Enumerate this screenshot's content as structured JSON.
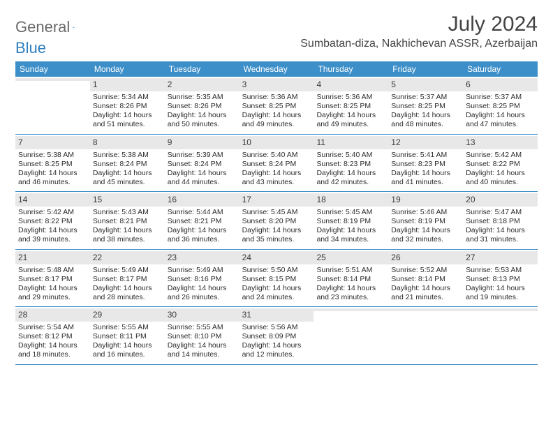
{
  "brand": {
    "word1": "General",
    "word2": "Blue"
  },
  "title": {
    "month": "July 2024",
    "location": "Sumbatan-diza, Nakhichevan ASSR, Azerbaijan"
  },
  "colors": {
    "header_bar": "#3d8fc9",
    "daynum_bg": "#e8e8e8",
    "text": "#2b2b2b"
  },
  "days_of_week": [
    "Sunday",
    "Monday",
    "Tuesday",
    "Wednesday",
    "Thursday",
    "Friday",
    "Saturday"
  ],
  "weeks": [
    [
      null,
      {
        "n": "1",
        "sr": "Sunrise: 5:34 AM",
        "ss": "Sunset: 8:26 PM",
        "d1": "Daylight: 14 hours",
        "d2": "and 51 minutes."
      },
      {
        "n": "2",
        "sr": "Sunrise: 5:35 AM",
        "ss": "Sunset: 8:26 PM",
        "d1": "Daylight: 14 hours",
        "d2": "and 50 minutes."
      },
      {
        "n": "3",
        "sr": "Sunrise: 5:36 AM",
        "ss": "Sunset: 8:25 PM",
        "d1": "Daylight: 14 hours",
        "d2": "and 49 minutes."
      },
      {
        "n": "4",
        "sr": "Sunrise: 5:36 AM",
        "ss": "Sunset: 8:25 PM",
        "d1": "Daylight: 14 hours",
        "d2": "and 49 minutes."
      },
      {
        "n": "5",
        "sr": "Sunrise: 5:37 AM",
        "ss": "Sunset: 8:25 PM",
        "d1": "Daylight: 14 hours",
        "d2": "and 48 minutes."
      },
      {
        "n": "6",
        "sr": "Sunrise: 5:37 AM",
        "ss": "Sunset: 8:25 PM",
        "d1": "Daylight: 14 hours",
        "d2": "and 47 minutes."
      }
    ],
    [
      {
        "n": "7",
        "sr": "Sunrise: 5:38 AM",
        "ss": "Sunset: 8:25 PM",
        "d1": "Daylight: 14 hours",
        "d2": "and 46 minutes."
      },
      {
        "n": "8",
        "sr": "Sunrise: 5:38 AM",
        "ss": "Sunset: 8:24 PM",
        "d1": "Daylight: 14 hours",
        "d2": "and 45 minutes."
      },
      {
        "n": "9",
        "sr": "Sunrise: 5:39 AM",
        "ss": "Sunset: 8:24 PM",
        "d1": "Daylight: 14 hours",
        "d2": "and 44 minutes."
      },
      {
        "n": "10",
        "sr": "Sunrise: 5:40 AM",
        "ss": "Sunset: 8:24 PM",
        "d1": "Daylight: 14 hours",
        "d2": "and 43 minutes."
      },
      {
        "n": "11",
        "sr": "Sunrise: 5:40 AM",
        "ss": "Sunset: 8:23 PM",
        "d1": "Daylight: 14 hours",
        "d2": "and 42 minutes."
      },
      {
        "n": "12",
        "sr": "Sunrise: 5:41 AM",
        "ss": "Sunset: 8:23 PM",
        "d1": "Daylight: 14 hours",
        "d2": "and 41 minutes."
      },
      {
        "n": "13",
        "sr": "Sunrise: 5:42 AM",
        "ss": "Sunset: 8:22 PM",
        "d1": "Daylight: 14 hours",
        "d2": "and 40 minutes."
      }
    ],
    [
      {
        "n": "14",
        "sr": "Sunrise: 5:42 AM",
        "ss": "Sunset: 8:22 PM",
        "d1": "Daylight: 14 hours",
        "d2": "and 39 minutes."
      },
      {
        "n": "15",
        "sr": "Sunrise: 5:43 AM",
        "ss": "Sunset: 8:21 PM",
        "d1": "Daylight: 14 hours",
        "d2": "and 38 minutes."
      },
      {
        "n": "16",
        "sr": "Sunrise: 5:44 AM",
        "ss": "Sunset: 8:21 PM",
        "d1": "Daylight: 14 hours",
        "d2": "and 36 minutes."
      },
      {
        "n": "17",
        "sr": "Sunrise: 5:45 AM",
        "ss": "Sunset: 8:20 PM",
        "d1": "Daylight: 14 hours",
        "d2": "and 35 minutes."
      },
      {
        "n": "18",
        "sr": "Sunrise: 5:45 AM",
        "ss": "Sunset: 8:19 PM",
        "d1": "Daylight: 14 hours",
        "d2": "and 34 minutes."
      },
      {
        "n": "19",
        "sr": "Sunrise: 5:46 AM",
        "ss": "Sunset: 8:19 PM",
        "d1": "Daylight: 14 hours",
        "d2": "and 32 minutes."
      },
      {
        "n": "20",
        "sr": "Sunrise: 5:47 AM",
        "ss": "Sunset: 8:18 PM",
        "d1": "Daylight: 14 hours",
        "d2": "and 31 minutes."
      }
    ],
    [
      {
        "n": "21",
        "sr": "Sunrise: 5:48 AM",
        "ss": "Sunset: 8:17 PM",
        "d1": "Daylight: 14 hours",
        "d2": "and 29 minutes."
      },
      {
        "n": "22",
        "sr": "Sunrise: 5:49 AM",
        "ss": "Sunset: 8:17 PM",
        "d1": "Daylight: 14 hours",
        "d2": "and 28 minutes."
      },
      {
        "n": "23",
        "sr": "Sunrise: 5:49 AM",
        "ss": "Sunset: 8:16 PM",
        "d1": "Daylight: 14 hours",
        "d2": "and 26 minutes."
      },
      {
        "n": "24",
        "sr": "Sunrise: 5:50 AM",
        "ss": "Sunset: 8:15 PM",
        "d1": "Daylight: 14 hours",
        "d2": "and 24 minutes."
      },
      {
        "n": "25",
        "sr": "Sunrise: 5:51 AM",
        "ss": "Sunset: 8:14 PM",
        "d1": "Daylight: 14 hours",
        "d2": "and 23 minutes."
      },
      {
        "n": "26",
        "sr": "Sunrise: 5:52 AM",
        "ss": "Sunset: 8:14 PM",
        "d1": "Daylight: 14 hours",
        "d2": "and 21 minutes."
      },
      {
        "n": "27",
        "sr": "Sunrise: 5:53 AM",
        "ss": "Sunset: 8:13 PM",
        "d1": "Daylight: 14 hours",
        "d2": "and 19 minutes."
      }
    ],
    [
      {
        "n": "28",
        "sr": "Sunrise: 5:54 AM",
        "ss": "Sunset: 8:12 PM",
        "d1": "Daylight: 14 hours",
        "d2": "and 18 minutes."
      },
      {
        "n": "29",
        "sr": "Sunrise: 5:55 AM",
        "ss": "Sunset: 8:11 PM",
        "d1": "Daylight: 14 hours",
        "d2": "and 16 minutes."
      },
      {
        "n": "30",
        "sr": "Sunrise: 5:55 AM",
        "ss": "Sunset: 8:10 PM",
        "d1": "Daylight: 14 hours",
        "d2": "and 14 minutes."
      },
      {
        "n": "31",
        "sr": "Sunrise: 5:56 AM",
        "ss": "Sunset: 8:09 PM",
        "d1": "Daylight: 14 hours",
        "d2": "and 12 minutes."
      },
      null,
      null,
      null
    ]
  ]
}
